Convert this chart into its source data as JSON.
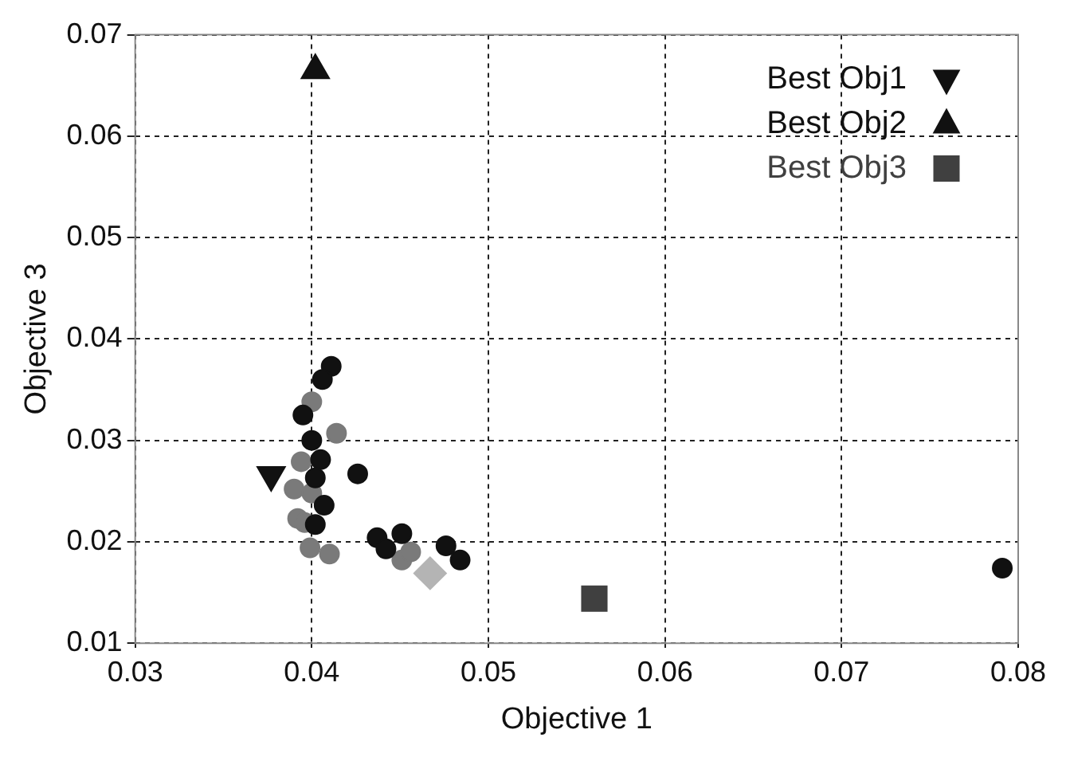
{
  "chart_data": {
    "type": "scatter",
    "xlabel": "Objective 1",
    "ylabel": "Objective 3",
    "xlim": [
      0.03,
      0.08
    ],
    "xticks": [
      0.03,
      0.04,
      0.05,
      0.06,
      0.07,
      0.08
    ],
    "ylim": [
      0.01,
      0.07
    ],
    "yticks": [
      0.01,
      0.02,
      0.03,
      0.04,
      0.05,
      0.06,
      0.07
    ],
    "grid": true,
    "legend": "top right",
    "series": [
      {
        "color": "#111111",
        "marker": "circle",
        "x": [
          0.0411,
          0.0406,
          0.0395,
          0.04,
          0.0405,
          0.0426,
          0.0402,
          0.0407,
          0.0437,
          0.0451,
          0.0442,
          0.0476,
          0.0484,
          0.0402,
          0.0791
        ],
        "values": [
          0.0373,
          0.036,
          0.0325,
          0.03,
          0.0281,
          0.0267,
          0.0263,
          0.0236,
          0.0204,
          0.0208,
          0.0193,
          0.0196,
          0.0182,
          0.0217,
          0.0174
        ]
      },
      {
        "color": "#7a7a7a",
        "marker": "circle",
        "x": [
          0.04,
          0.0414,
          0.0394,
          0.039,
          0.04,
          0.0392,
          0.0396,
          0.0399,
          0.041,
          0.0451,
          0.0456
        ],
        "values": [
          0.0338,
          0.0307,
          0.0279,
          0.0252,
          0.0248,
          0.0223,
          0.0219,
          0.0194,
          0.0188,
          0.0182,
          0.019
        ]
      },
      {
        "color": "#b4b4b4",
        "marker": "diamond",
        "x": [
          0.0467
        ],
        "values": [
          0.0169
        ]
      },
      {
        "name": "Best Obj1",
        "color": "#111111",
        "marker": "triangle_down",
        "x": [
          0.0377
        ],
        "values": [
          0.0266
        ]
      },
      {
        "name": "Best Obj2",
        "color": "#111111",
        "marker": "triangle",
        "x": [
          0.0402
        ],
        "values": [
          0.0665
        ]
      },
      {
        "name": "Best Obj3",
        "color": "#404040",
        "marker": "square",
        "x": [
          0.056
        ],
        "values": [
          0.0144
        ]
      }
    ]
  }
}
